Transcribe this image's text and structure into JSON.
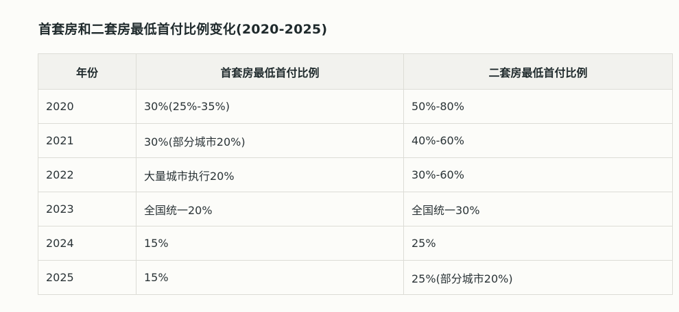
{
  "title": "首套房和二套房最低首付比例变化(2020-2025)",
  "table": {
    "headers": [
      "年份",
      "首套房最低首付比例",
      "二套房最低首付比例"
    ],
    "rows": [
      [
        "2020",
        "30%(25%-35%)",
        "50%-80%"
      ],
      [
        "2021",
        "30%(部分城市20%)",
        "40%-60%"
      ],
      [
        "2022",
        "大量城市执行20%",
        "30%-60%"
      ],
      [
        "2023",
        "全国统一20%",
        "全国统一30%"
      ],
      [
        "2024",
        "15%",
        "25%"
      ],
      [
        "2025",
        "15%",
        "25%(部分城市20%)"
      ]
    ]
  }
}
